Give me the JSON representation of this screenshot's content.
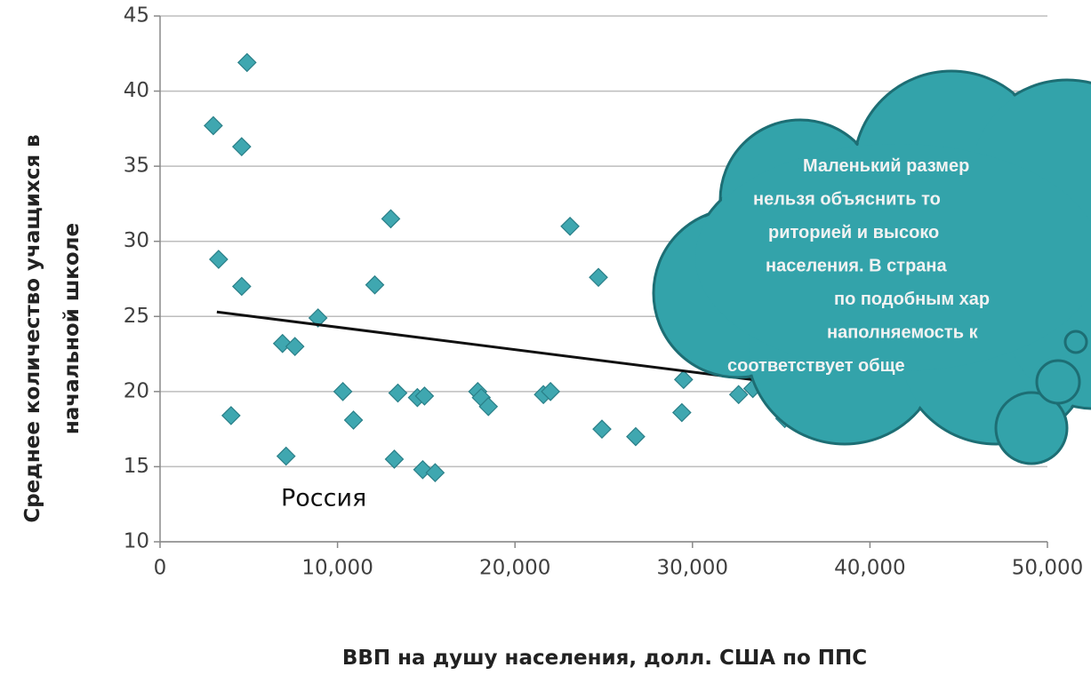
{
  "chart_data": {
    "type": "scatter",
    "x_label": "ВВП на душу населения, долл. США по ППС",
    "y_label": [
      "Среднее количество учащихся в",
      "начальной школе"
    ],
    "xlim": [
      0,
      50000
    ],
    "xticks": [
      0,
      {
        "value": 10000,
        "label": "10,000"
      },
      {
        "value": 20000,
        "label": "20,000"
      },
      {
        "value": 30000,
        "label": "30,000"
      },
      {
        "value": 40000,
        "label": "40,000"
      },
      {
        "value": 50000,
        "label": "50,000"
      }
    ],
    "ylim": [
      10,
      45
    ],
    "yticks": [
      10,
      15,
      20,
      25,
      30,
      35,
      40,
      45
    ],
    "grid": true,
    "color": "#3fa7b0",
    "x": [
      3000,
      4900,
      4600,
      3300,
      4600,
      4000,
      6900,
      7600,
      7100,
      8900,
      10300,
      10900,
      12100,
      13000,
      13400,
      13200,
      14500,
      14900,
      14800,
      15500,
      17900,
      18100,
      18500,
      21600,
      22000,
      23100,
      24700,
      24900,
      26800,
      29400,
      29500,
      32600,
      33400,
      35200,
      35200
    ],
    "values": [
      37.7,
      41.9,
      36.3,
      28.8,
      27.0,
      18.4,
      23.2,
      23.0,
      15.7,
      24.9,
      20.0,
      18.1,
      27.1,
      31.5,
      19.9,
      15.5,
      19.6,
      19.7,
      14.8,
      14.6,
      20.0,
      19.6,
      19.0,
      19.8,
      20.0,
      31.0,
      27.6,
      17.5,
      17.0,
      18.6,
      20.8,
      19.8,
      20.2,
      18.2,
      19.6
    ],
    "trendline": {
      "x": [
        3200,
        34000
      ],
      "values": [
        25.3,
        20.7
      ],
      "color": "#111111"
    },
    "annotation": "Россия",
    "callout": [
      "Маленький размер",
      "нельзя объяснить то",
      "риторией и высоко",
      "населения. В страна",
      "по подобным хар",
      "наполняемость к",
      "соответствует обще"
    ]
  }
}
